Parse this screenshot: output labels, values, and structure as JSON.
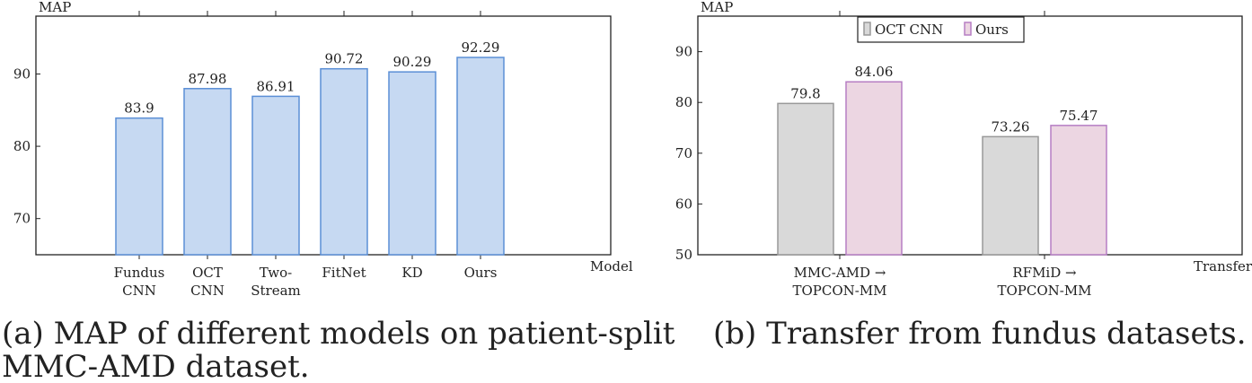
{
  "captions": {
    "a_line1": "(a) MAP of different models on patient-split",
    "a_line2": "MMC-AMD dataset.",
    "b": "(b) Transfer from fundus datasets."
  },
  "colors": {
    "bar_fill_a": "#c6d9f2",
    "bar_stroke_a": "#5b8fd6",
    "oct_fill": "#d9d9d9",
    "oct_stroke": "#999999",
    "ours_fill": "#ecd6e2",
    "ours_stroke": "#b67ec4",
    "axis": "#222222"
  },
  "chart_data": [
    {
      "type": "bar",
      "ylabel": "MAP",
      "xlabel": "Model",
      "ylim": [
        65,
        98
      ],
      "yticks": [
        70,
        80,
        90
      ],
      "categories": [
        [
          "Fundus",
          "CNN"
        ],
        [
          "OCT",
          "CNN"
        ],
        [
          "Two-",
          "Stream"
        ],
        [
          "FitNet"
        ],
        [
          "KD"
        ],
        [
          "Ours"
        ]
      ],
      "values": [
        83.9,
        87.98,
        86.91,
        90.72,
        90.29,
        92.29
      ],
      "value_labels": [
        "83.9",
        "87.98",
        "86.91",
        "90.72",
        "90.29",
        "92.29"
      ]
    },
    {
      "type": "bar",
      "ylabel": "MAP",
      "xlabel": "Transfer",
      "ylim": [
        50,
        97
      ],
      "yticks": [
        50,
        60,
        70,
        80,
        90
      ],
      "categories": [
        [
          "MMC-AMD →",
          "TOPCON-MM"
        ],
        [
          "RFMiD →",
          "TOPCON-MM"
        ]
      ],
      "series": [
        {
          "name": "OCT CNN",
          "values": [
            79.8,
            73.26
          ],
          "value_labels": [
            "79.8",
            "73.26"
          ]
        },
        {
          "name": "Ours",
          "values": [
            84.06,
            75.47
          ],
          "value_labels": [
            "84.06",
            "75.47"
          ]
        }
      ],
      "legend": "top-center"
    }
  ]
}
